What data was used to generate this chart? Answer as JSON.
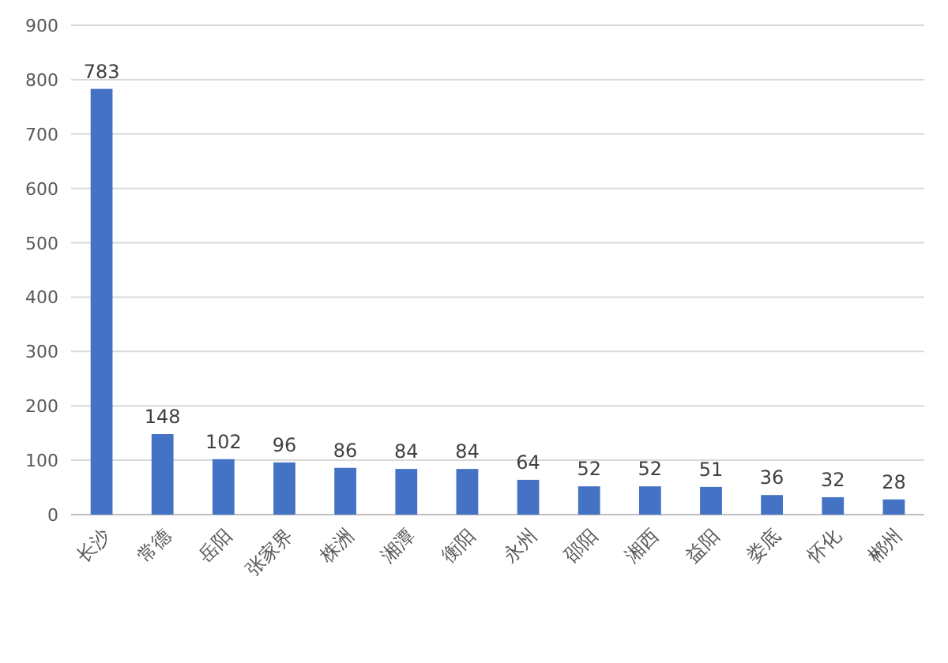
{
  "chart_data": {
    "type": "bar",
    "categories": [
      "长沙",
      "常德",
      "岳阳",
      "张家界",
      "株洲",
      "湘潭",
      "衡阳",
      "永州",
      "邵阳",
      "湘西",
      "益阳",
      "娄底",
      "怀化",
      "郴州"
    ],
    "values": [
      783,
      148,
      102,
      96,
      86,
      84,
      84,
      64,
      52,
      52,
      51,
      36,
      32,
      28
    ],
    "color": "#4472c4",
    "ylim": [
      0,
      900
    ],
    "yticks": [
      0,
      100,
      200,
      300,
      400,
      500,
      600,
      700,
      800,
      900
    ],
    "grid": "y",
    "data_labels": true
  }
}
